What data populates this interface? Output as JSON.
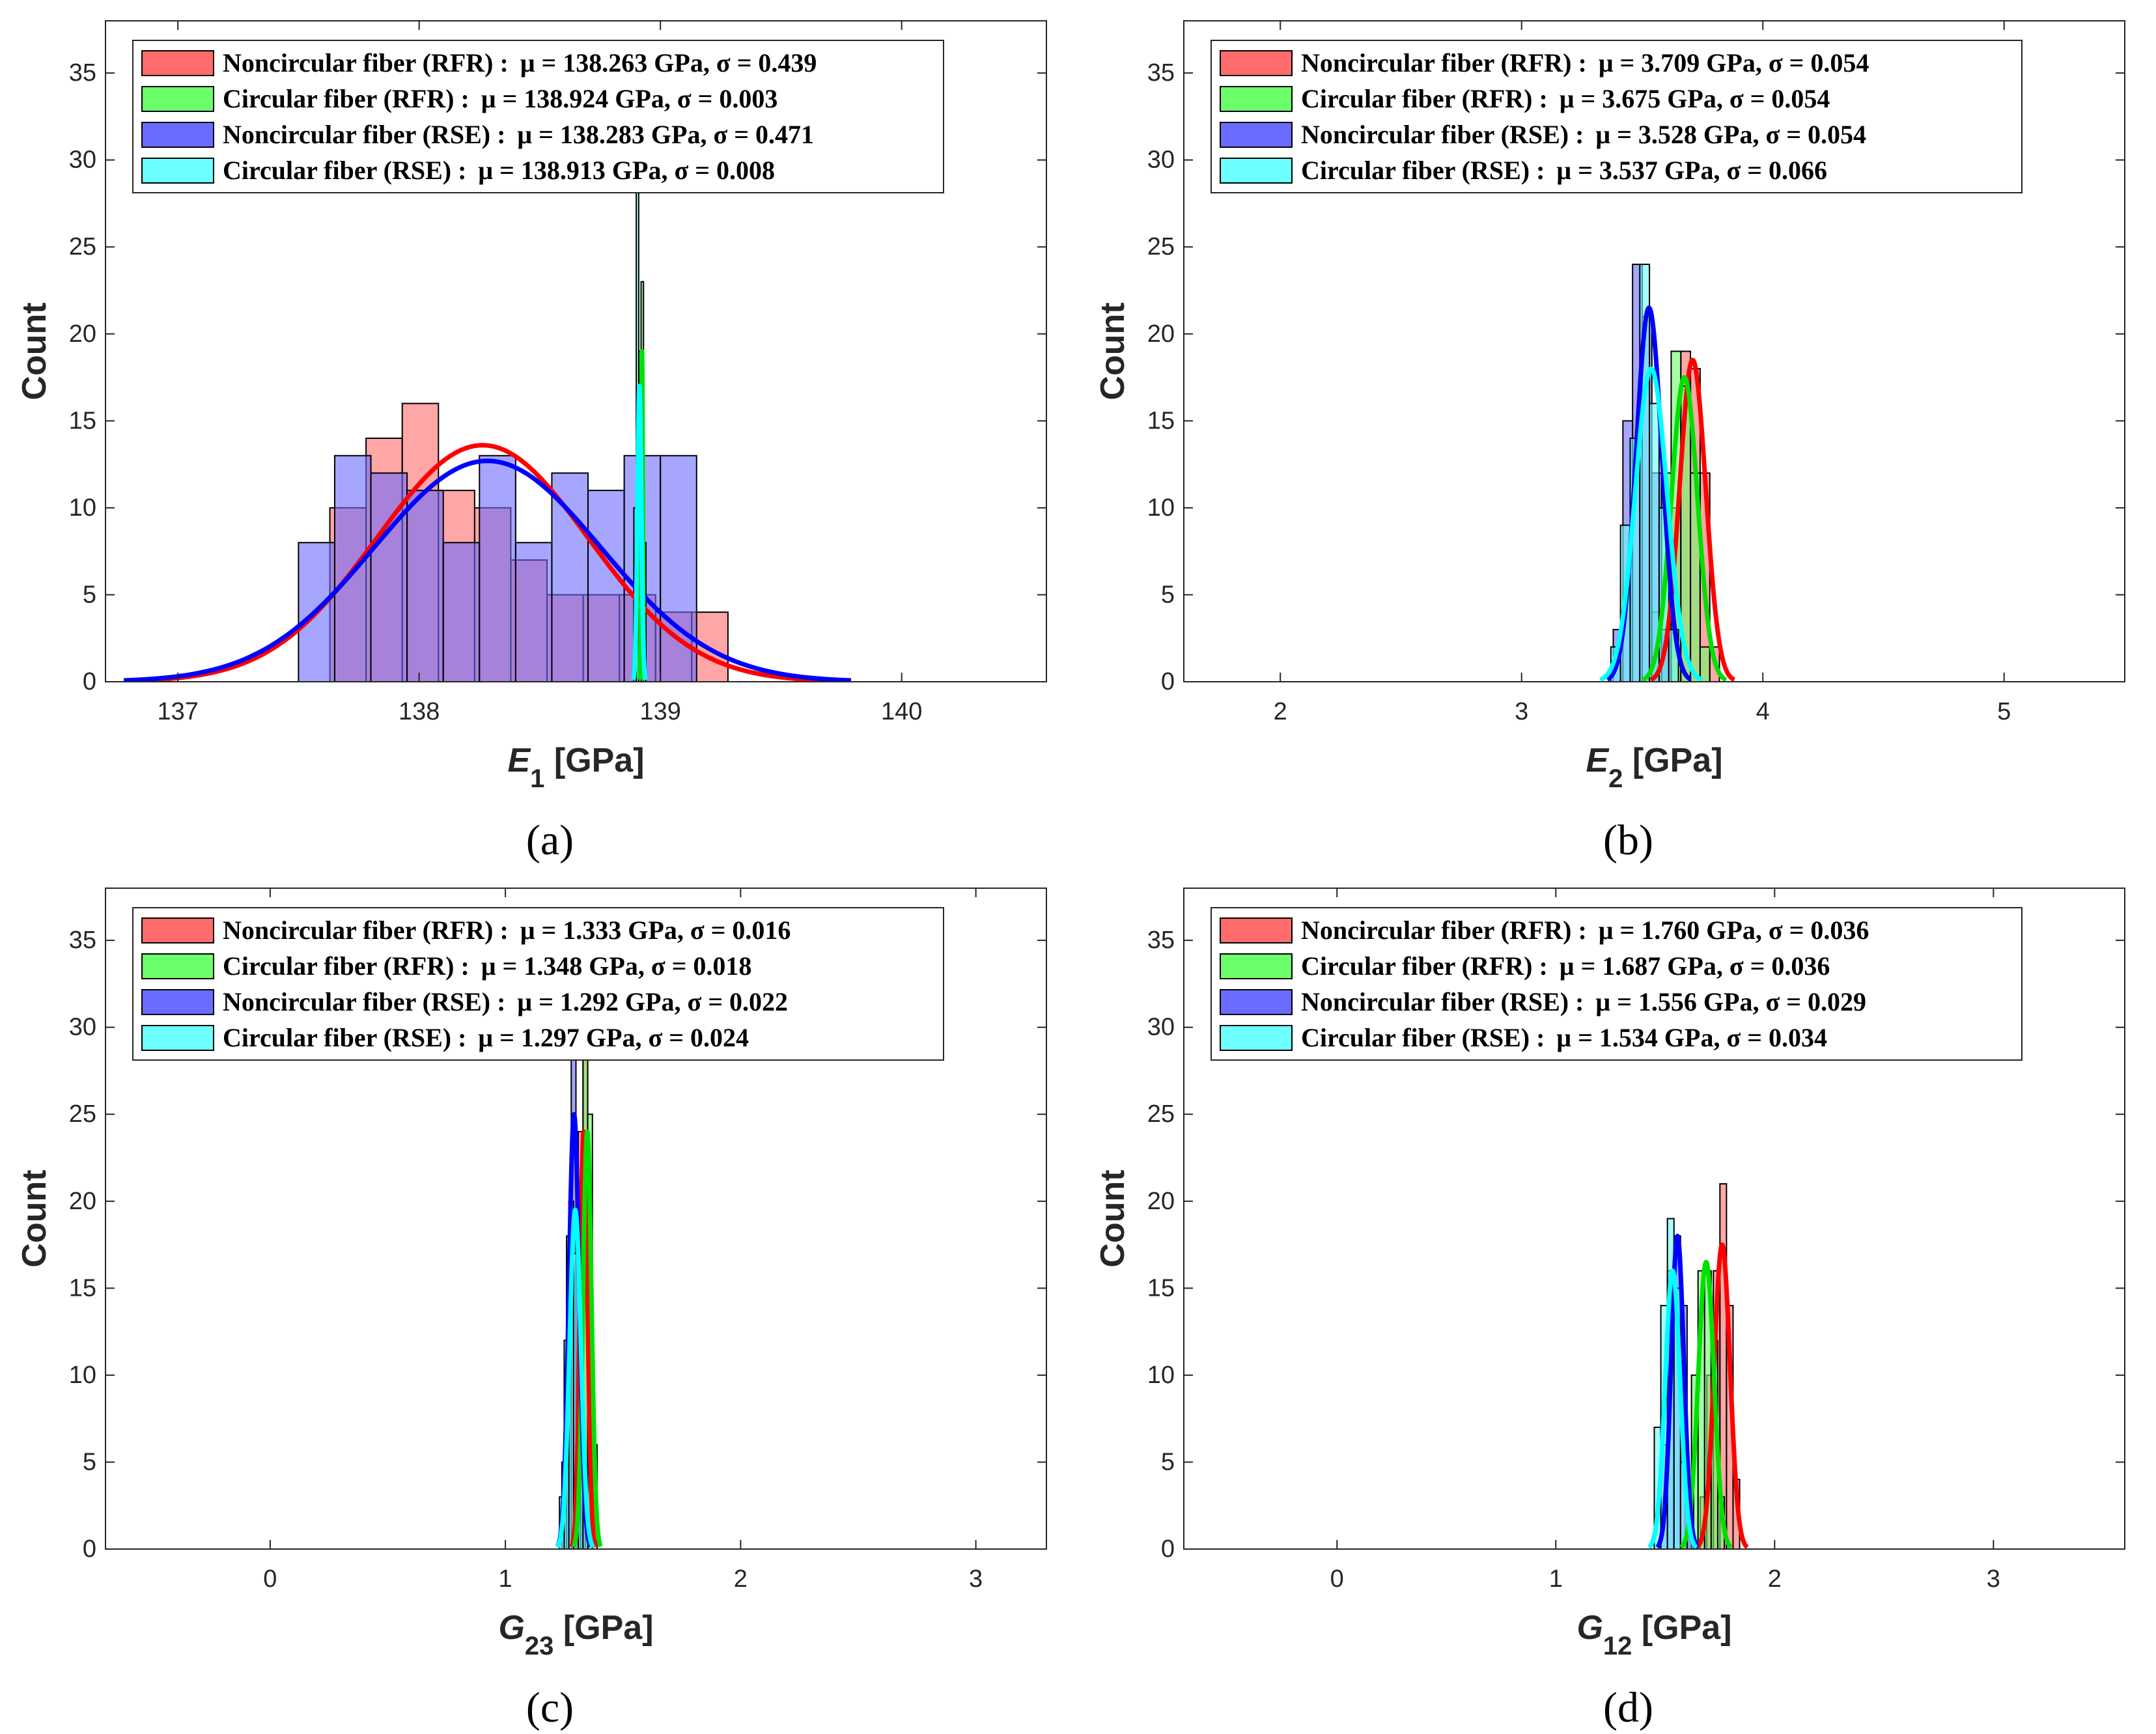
{
  "figure": {
    "colors": {
      "red": "#ff0000",
      "green": "#00e000",
      "blue": "#0000ff",
      "cyan": "#00ffff",
      "red_fill": "#ff6b6b",
      "green_fill": "#6bff6b",
      "blue_fill": "#6b6bff",
      "cyan_fill": "#6bffff",
      "overlap_fill": "#7a3fbf"
    }
  },
  "chart_data": [
    {
      "id": "a",
      "type": "bar",
      "caption": "(a)",
      "title": "",
      "ylabel": "Count",
      "xlabel_sym": "E",
      "xlabel_sub": "1",
      "xlabel_unit": " [GPa]",
      "xlim": [
        136.7,
        140.6
      ],
      "ylim": [
        0,
        38
      ],
      "xticks": [
        137,
        138,
        139,
        140
      ],
      "xtick_labels": [
        "137",
        "138",
        "139",
        "140"
      ],
      "yticks": [
        0,
        5,
        10,
        15,
        20,
        25,
        30,
        35
      ],
      "ytick_labels": [
        "0",
        "5",
        "10",
        "15",
        "20",
        "25",
        "30",
        "35"
      ],
      "legend": [
        {
          "label": "Noncircular fiber (RFR) :",
          "stats": "μ = 138.263 GPa, σ = 0.439",
          "color": "#ff6b6b"
        },
        {
          "label": "Circular fiber (RFR) :",
          "stats": "μ = 138.924 GPa, σ = 0.003",
          "color": "#6bff6b"
        },
        {
          "label": "Noncircular fiber (RSE) :",
          "stats": "μ = 138.283 GPa, σ = 0.471",
          "color": "#6b6bff"
        },
        {
          "label": "Circular fiber (RSE) :",
          "stats": "μ = 138.913 GPa, σ = 0.008",
          "color": "#6bffff"
        }
      ],
      "series": [
        {
          "name": "Noncircular fiber (RFR)",
          "kind": "hist",
          "color": "#ff6b6b",
          "edges": [
            137.63,
            137.78,
            137.93,
            138.08,
            138.23,
            138.38,
            138.53,
            138.68,
            138.83,
            138.98,
            139.13,
            139.28
          ],
          "counts": [
            10,
            14,
            16,
            11,
            10,
            7,
            5,
            5,
            5,
            4,
            4
          ],
          "fit": {
            "mu": 138.263,
            "sigma": 0.439,
            "peak": 13.6,
            "color": "#ff0000"
          }
        },
        {
          "name": "Noncircular fiber (RSE)",
          "kind": "hist",
          "color": "#6b6bff",
          "edges": [
            137.5,
            137.65,
            137.8,
            137.95,
            138.1,
            138.25,
            138.4,
            138.55,
            138.7,
            138.85,
            139.0,
            139.15
          ],
          "counts": [
            8,
            13,
            12,
            11,
            8,
            13,
            8,
            12,
            11,
            13,
            13
          ],
          "fit": {
            "mu": 138.283,
            "sigma": 0.471,
            "peak": 12.7,
            "color": "#0000ff"
          }
        },
        {
          "name": "Circular fiber (RFR)",
          "kind": "hist",
          "color": "#6bff6b",
          "edges": [
            138.9,
            138.91,
            138.92,
            138.93,
            138.94
          ],
          "counts": [
            12,
            19,
            23,
            8
          ],
          "fit": {
            "mu": 138.924,
            "sigma": 0.003,
            "peak": 19,
            "color": "#00e000"
          }
        },
        {
          "name": "Circular fiber (RSE)",
          "kind": "hist",
          "color": "#6bffff",
          "edges": [
            138.89,
            138.9,
            138.91,
            138.92,
            138.93
          ],
          "counts": [
            10,
            29,
            17,
            6
          ],
          "fit": {
            "mu": 138.913,
            "sigma": 0.008,
            "peak": 17,
            "color": "#00ffff"
          }
        }
      ]
    },
    {
      "id": "b",
      "type": "bar",
      "caption": "(b)",
      "title": "",
      "ylabel": "Count",
      "xlabel_sym": "E",
      "xlabel_sub": "2",
      "xlabel_unit": " [GPa]",
      "xlim": [
        1.6,
        5.5
      ],
      "ylim": [
        0,
        38
      ],
      "xticks": [
        2,
        3,
        4,
        5
      ],
      "xtick_labels": [
        "2",
        "3",
        "4",
        "5"
      ],
      "yticks": [
        0,
        5,
        10,
        15,
        20,
        25,
        30,
        35
      ],
      "ytick_labels": [
        "0",
        "5",
        "10",
        "15",
        "20",
        "25",
        "30",
        "35"
      ],
      "legend": [
        {
          "label": "Noncircular fiber (RFR) :",
          "stats": "μ = 3.709 GPa, σ = 0.054",
          "color": "#ff6b6b"
        },
        {
          "label": "Circular fiber (RFR) :",
          "stats": "μ = 3.675 GPa, σ = 0.054",
          "color": "#6bff6b"
        },
        {
          "label": "Noncircular fiber (RSE) :",
          "stats": "μ = 3.528 GPa, σ = 0.054",
          "color": "#6b6bff"
        },
        {
          "label": "Circular fiber (RSE) :",
          "stats": "μ = 3.537 GPa, σ = 0.066",
          "color": "#6bffff"
        }
      ],
      "series": [
        {
          "name": "Noncircular fiber (RFR)",
          "kind": "hist",
          "color": "#ff6b6b",
          "edges": [
            3.58,
            3.62,
            3.66,
            3.7,
            3.74,
            3.78,
            3.82
          ],
          "counts": [
            3,
            10,
            19,
            18,
            12,
            2
          ],
          "fit": {
            "mu": 3.709,
            "sigma": 0.054,
            "peak": 18.5,
            "color": "#ff0000"
          }
        },
        {
          "name": "Circular fiber (RFR)",
          "kind": "hist",
          "color": "#6bff6b",
          "edges": [
            3.54,
            3.58,
            3.62,
            3.66,
            3.7,
            3.74,
            3.78
          ],
          "counts": [
            4,
            12,
            19,
            17,
            12,
            2
          ],
          "fit": {
            "mu": 3.675,
            "sigma": 0.054,
            "peak": 17.5,
            "color": "#00e000"
          }
        },
        {
          "name": "Noncircular fiber (RSE)",
          "kind": "hist",
          "color": "#6b6bff",
          "edges": [
            3.38,
            3.42,
            3.46,
            3.5,
            3.54,
            3.58,
            3.62
          ],
          "counts": [
            3,
            15,
            24,
            21,
            12,
            3
          ],
          "fit": {
            "mu": 3.528,
            "sigma": 0.054,
            "peak": 21.5,
            "color": "#0000ff"
          }
        },
        {
          "name": "Circular fiber (RSE)",
          "kind": "hist",
          "color": "#6bffff",
          "edges": [
            3.37,
            3.41,
            3.45,
            3.49,
            3.53,
            3.57,
            3.61,
            3.65
          ],
          "counts": [
            2,
            9,
            14,
            24,
            16,
            10,
            3
          ],
          "fit": {
            "mu": 3.537,
            "sigma": 0.066,
            "peak": 18,
            "color": "#00ffff"
          }
        }
      ]
    },
    {
      "id": "c",
      "type": "bar",
      "caption": "(c)",
      "title": "",
      "ylabel": "Count",
      "xlabel_sym": "G",
      "xlabel_sub": "23",
      "xlabel_unit": " [GPa]",
      "xlim": [
        -0.7,
        3.3
      ],
      "ylim": [
        0,
        38
      ],
      "xticks": [
        0,
        1,
        2,
        3
      ],
      "xtick_labels": [
        "0",
        "1",
        "2",
        "3"
      ],
      "yticks": [
        0,
        5,
        10,
        15,
        20,
        25,
        30,
        35
      ],
      "ytick_labels": [
        "0",
        "5",
        "10",
        "15",
        "20",
        "25",
        "30",
        "35"
      ],
      "legend": [
        {
          "label": "Noncircular fiber (RFR) :",
          "stats": "μ = 1.333 GPa, σ = 0.016",
          "color": "#ff6b6b"
        },
        {
          "label": "Circular fiber (RFR) :",
          "stats": "μ = 1.348 GPa, σ = 0.018",
          "color": "#6bff6b"
        },
        {
          "label": "Noncircular fiber (RSE) :",
          "stats": "μ = 1.292 GPa, σ = 0.022",
          "color": "#6b6bff"
        },
        {
          "label": "Circular fiber (RSE) :",
          "stats": "μ = 1.297 GPa, σ = 0.024",
          "color": "#6bffff"
        }
      ],
      "series": [
        {
          "name": "Noncircular fiber (RFR)",
          "kind": "hist",
          "color": "#ff6b6b",
          "edges": [
            1.29,
            1.31,
            1.33,
            1.35,
            1.37
          ],
          "counts": [
            6,
            24,
            30,
            8
          ],
          "fit": {
            "mu": 1.333,
            "sigma": 0.016,
            "peak": 24,
            "color": "#ff0000"
          }
        },
        {
          "name": "Circular fiber (RFR)",
          "kind": "hist",
          "color": "#6bff6b",
          "edges": [
            1.31,
            1.33,
            1.35,
            1.37,
            1.39
          ],
          "counts": [
            8,
            29,
            25,
            6
          ],
          "fit": {
            "mu": 1.348,
            "sigma": 0.018,
            "peak": 24,
            "color": "#00e000"
          }
        },
        {
          "name": "Noncircular fiber (RSE)",
          "kind": "hist",
          "color": "#6b6bff",
          "edges": [
            1.24,
            1.26,
            1.28,
            1.3,
            1.32,
            1.34
          ],
          "counts": [
            5,
            18,
            29,
            20,
            4
          ],
          "fit": {
            "mu": 1.292,
            "sigma": 0.022,
            "peak": 25,
            "color": "#0000ff"
          }
        },
        {
          "name": "Circular fiber (RSE)",
          "kind": "hist",
          "color": "#6bffff",
          "edges": [
            1.23,
            1.25,
            1.27,
            1.29,
            1.31,
            1.33,
            1.35
          ],
          "counts": [
            3,
            12,
            20,
            17,
            9,
            2
          ],
          "fit": {
            "mu": 1.297,
            "sigma": 0.024,
            "peak": 19.5,
            "color": "#00ffff"
          }
        }
      ]
    },
    {
      "id": "d",
      "type": "bar",
      "caption": "(d)",
      "title": "",
      "ylabel": "Count",
      "xlabel_sym": "G",
      "xlabel_sub": "12",
      "xlabel_unit": " [GPa]",
      "xlim": [
        -0.7,
        3.6
      ],
      "ylim": [
        0,
        38
      ],
      "xticks": [
        0,
        1,
        2,
        3
      ],
      "xtick_labels": [
        "0",
        "1",
        "2",
        "3"
      ],
      "yticks": [
        0,
        5,
        10,
        15,
        20,
        25,
        30,
        35
      ],
      "ytick_labels": [
        "0",
        "5",
        "10",
        "15",
        "20",
        "25",
        "30",
        "35"
      ],
      "legend": [
        {
          "label": "Noncircular fiber (RFR) :",
          "stats": "μ = 1.760 GPa, σ = 0.036",
          "color": "#ff6b6b"
        },
        {
          "label": "Circular fiber (RFR) :",
          "stats": "μ = 1.687 GPa, σ = 0.036",
          "color": "#6bff6b"
        },
        {
          "label": "Noncircular fiber (RSE) :",
          "stats": "μ = 1.556 GPa, σ = 0.029",
          "color": "#6b6bff"
        },
        {
          "label": "Circular fiber (RSE) :",
          "stats": "μ = 1.534 GPa, σ = 0.034",
          "color": "#6bffff"
        }
      ],
      "series": [
        {
          "name": "Noncircular fiber (RFR)",
          "kind": "hist",
          "color": "#ff6b6b",
          "edges": [
            1.66,
            1.69,
            1.72,
            1.75,
            1.78,
            1.81,
            1.84
          ],
          "counts": [
            3,
            10,
            16,
            21,
            14,
            4
          ],
          "fit": {
            "mu": 1.76,
            "sigma": 0.036,
            "peak": 17.5,
            "color": "#ff0000"
          }
        },
        {
          "name": "Circular fiber (RFR)",
          "kind": "hist",
          "color": "#6bff6b",
          "edges": [
            1.59,
            1.62,
            1.65,
            1.68,
            1.71,
            1.74,
            1.77
          ],
          "counts": [
            3,
            10,
            16,
            16,
            12,
            3
          ],
          "fit": {
            "mu": 1.687,
            "sigma": 0.036,
            "peak": 16.5,
            "color": "#00e000"
          }
        },
        {
          "name": "Noncircular fiber (RSE)",
          "kind": "hist",
          "color": "#6b6bff",
          "edges": [
            1.48,
            1.51,
            1.54,
            1.57,
            1.6,
            1.63
          ],
          "counts": [
            6,
            16,
            18,
            14,
            4
          ],
          "fit": {
            "mu": 1.556,
            "sigma": 0.029,
            "peak": 18,
            "color": "#0000ff"
          }
        },
        {
          "name": "Circular fiber (RSE)",
          "kind": "hist",
          "color": "#6bffff",
          "edges": [
            1.45,
            1.48,
            1.51,
            1.54,
            1.57,
            1.6
          ],
          "counts": [
            7,
            14,
            19,
            15,
            5
          ],
          "fit": {
            "mu": 1.534,
            "sigma": 0.034,
            "peak": 16,
            "color": "#00ffff"
          }
        }
      ]
    }
  ]
}
